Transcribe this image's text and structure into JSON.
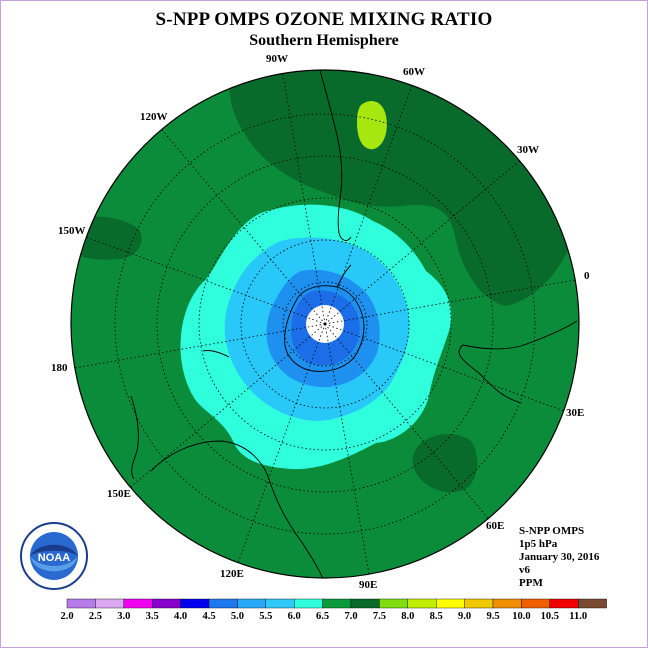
{
  "title": "S-NPP OMPS OZONE MIXING RATIO",
  "subtitle": "Southern Hemisphere",
  "longitude_labels": [
    "90W",
    "60W",
    "30W",
    "0",
    "30E",
    "60E",
    "90E",
    "120E",
    "150E",
    "180",
    "150W",
    "120W"
  ],
  "info": {
    "instrument": "S-NPP OMPS",
    "level": "1p5 hPa",
    "date": "January 30, 2016",
    "version": "v6",
    "units": "PPM"
  },
  "logo_text": "NOAA",
  "legend": {
    "ticks": [
      "2.0",
      "2.5",
      "3.0",
      "3.5",
      "4.0",
      "4.5",
      "5.0",
      "5.5",
      "6.0",
      "6.5",
      "7.0",
      "7.5",
      "8.0",
      "8.5",
      "9.0",
      "9.5",
      "10.0",
      "10.5",
      "11.0"
    ],
    "colors": [
      "#b57be8",
      "#d9a8f0",
      "#f000f0",
      "#8800cc",
      "#0000ee",
      "#1e78f0",
      "#28a8f8",
      "#30c8f8",
      "#30ffdd",
      "#0a9a3c",
      "#086b2c",
      "#80dd10",
      "#c0f000",
      "#ffff00",
      "#f0c800",
      "#f09000",
      "#f06000",
      "#f00000",
      "#7a4a30"
    ]
  },
  "colors": {
    "background_green": "#0a8c3a",
    "dark_green": "#086b2c",
    "light_green": "#a8e610",
    "cyan": "#30ffdd",
    "light_blue": "#28c8f8",
    "mid_blue": "#1e90f0",
    "deep_blue": "#1c6ee8"
  }
}
